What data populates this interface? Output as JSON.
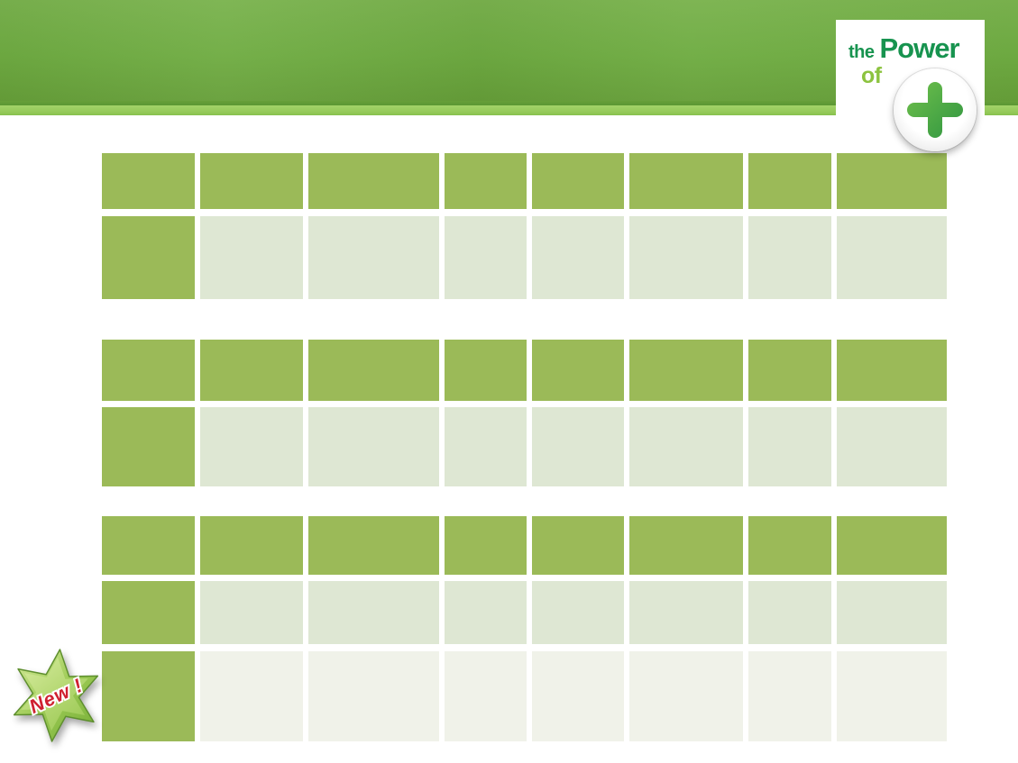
{
  "logo": {
    "the": "the",
    "power": "Power",
    "of": "of",
    "plus_icon": "plus-in-circle",
    "text_color": "#17934f",
    "of_color": "#8cc33f"
  },
  "header": {
    "band_color": "#6fac42",
    "band_color_light": "#7ab34e",
    "band_color_dark_edge": "#669f39",
    "band_line_color": "#5b9733",
    "stripe_color": "#92c857",
    "stripe_color_light": "#a3d369",
    "stripe_color_dark": "#86bf4c"
  },
  "badge": {
    "label": "New !",
    "icon": "star-burst-icon",
    "text_color": "#cf2030",
    "star_light": "#d8ec9f",
    "star_mid": "#9ecb56",
    "star_dark": "#74ad35",
    "star_edge": "#5e8f2e"
  },
  "colors": {
    "table_header_cell": "#9bba58",
    "table_body_cell": "#dee7d3",
    "table_body_cell_light": "#f0f2e9",
    "plus_gradient_start": "#74c34c",
    "plus_gradient_end": "#2b9240"
  },
  "tables": [
    {
      "name": "table-1",
      "columns": 8,
      "rows": [
        {
          "kind": "header",
          "cells": [
            "",
            "",
            "",
            "",
            "",
            "",
            "",
            ""
          ]
        },
        {
          "kind": "body",
          "cells": [
            "",
            "",
            "",
            "",
            "",
            "",
            "",
            ""
          ]
        }
      ]
    },
    {
      "name": "table-2",
      "columns": 8,
      "rows": [
        {
          "kind": "header",
          "cells": [
            "",
            "",
            "",
            "",
            "",
            "",
            "",
            ""
          ]
        },
        {
          "kind": "body",
          "cells": [
            "",
            "",
            "",
            "",
            "",
            "",
            "",
            ""
          ]
        }
      ]
    },
    {
      "name": "table-3",
      "columns": 8,
      "rows": [
        {
          "kind": "header",
          "cells": [
            "",
            "",
            "",
            "",
            "",
            "",
            "",
            ""
          ]
        },
        {
          "kind": "body",
          "cells": [
            "",
            "",
            "",
            "",
            "",
            "",
            "",
            ""
          ]
        },
        {
          "kind": "body-light",
          "cells": [
            "",
            "",
            "",
            "",
            "",
            "",
            "",
            ""
          ]
        }
      ]
    }
  ]
}
